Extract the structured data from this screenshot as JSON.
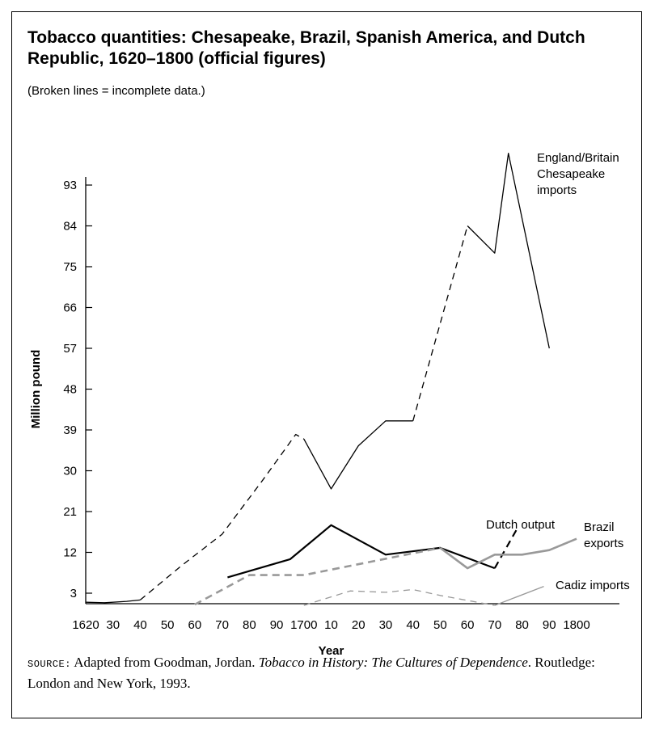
{
  "title": "Tobacco quantities: Chesapeake, Brazil, Spanish America, and Dutch Republic, 1620–1800 (official figures)",
  "subtitle": "(Broken lines = incomplete data.)",
  "source": {
    "label": "SOURCE:",
    "text_before": " Adapted from Goodman, Jordan. ",
    "book": "Tobacco in History: The Cultures of Dependence",
    "text_after": ". Routledge: London and New York, 1993."
  },
  "chart_data": {
    "type": "line",
    "xlabel": "Year",
    "ylabel": "Million pound",
    "xlim": [
      1620,
      1800
    ],
    "ylim": [
      0,
      102
    ],
    "y_ticks": [
      3,
      12,
      21,
      30,
      39,
      48,
      57,
      66,
      75,
      84,
      93
    ],
    "x_ticks": [
      {
        "value": 1620,
        "label": "1620"
      },
      {
        "value": 1630,
        "label": "30"
      },
      {
        "value": 1640,
        "label": "40"
      },
      {
        "value": 1650,
        "label": "50"
      },
      {
        "value": 1660,
        "label": "60"
      },
      {
        "value": 1670,
        "label": "70"
      },
      {
        "value": 1680,
        "label": "80"
      },
      {
        "value": 1690,
        "label": "90"
      },
      {
        "value": 1700,
        "label": "1700"
      },
      {
        "value": 1710,
        "label": "10"
      },
      {
        "value": 1720,
        "label": "20"
      },
      {
        "value": 1730,
        "label": "30"
      },
      {
        "value": 1740,
        "label": "40"
      },
      {
        "value": 1750,
        "label": "50"
      },
      {
        "value": 1760,
        "label": "60"
      },
      {
        "value": 1770,
        "label": "70"
      },
      {
        "value": 1780,
        "label": "80"
      },
      {
        "value": 1790,
        "label": "90"
      },
      {
        "value": 1800,
        "label": "1800"
      }
    ],
    "grid": false,
    "series": [
      {
        "name": "England/Britain Chesapeake imports",
        "label_lines": [
          "England/Britain",
          "Chesapeake",
          "imports"
        ],
        "color": "#000000",
        "stroke_width": 1.3,
        "segments": [
          {
            "dashed": false,
            "points": [
              [
                1620,
                1
              ],
              [
                1627,
                0.9
              ],
              [
                1635,
                1.2
              ],
              [
                1640,
                1.5
              ]
            ]
          },
          {
            "dashed": true,
            "points": [
              [
                1640,
                1.5
              ],
              [
                1655,
                9
              ],
              [
                1670,
                16
              ],
              [
                1685,
                28
              ],
              [
                1697,
                38
              ],
              [
                1700,
                37
              ]
            ]
          },
          {
            "dashed": false,
            "points": [
              [
                1700,
                37
              ],
              [
                1710,
                26
              ],
              [
                1720,
                35.5
              ],
              [
                1730,
                41
              ],
              [
                1740,
                41
              ]
            ]
          },
          {
            "dashed": true,
            "points": [
              [
                1740,
                41
              ],
              [
                1760,
                84
              ]
            ]
          },
          {
            "dashed": false,
            "points": [
              [
                1760,
                84
              ],
              [
                1770,
                78
              ],
              [
                1775,
                100
              ],
              [
                1790,
                57
              ]
            ]
          }
        ]
      },
      {
        "name": "Dutch output",
        "label_lines": [
          "Dutch output"
        ],
        "color": "#000000",
        "stroke_width": 2.2,
        "segments": [
          {
            "dashed": false,
            "points": [
              [
                1672,
                6.5
              ],
              [
                1695,
                10.5
              ],
              [
                1710,
                18
              ],
              [
                1730,
                11.5
              ],
              [
                1750,
                13
              ],
              [
                1770,
                8.5
              ]
            ]
          },
          {
            "dashed": true,
            "points": [
              [
                1770,
                8.5
              ],
              [
                1778,
                17
              ]
            ]
          }
        ]
      },
      {
        "name": "Brazil exports",
        "label_lines": [
          "Brazil",
          "exports"
        ],
        "color": "#999999",
        "stroke_width": 2.6,
        "segments": [
          {
            "dashed": true,
            "points": [
              [
                1660,
                0.5
              ],
              [
                1680,
                7
              ],
              [
                1700,
                7
              ],
              [
                1750,
                13
              ]
            ]
          },
          {
            "dashed": false,
            "points": [
              [
                1750,
                13
              ],
              [
                1760,
                8.5
              ],
              [
                1770,
                11.5
              ],
              [
                1780,
                11.5
              ],
              [
                1790,
                12.5
              ],
              [
                1800,
                15
              ]
            ]
          }
        ]
      },
      {
        "name": "Cadiz imports",
        "label_lines": [
          "Cadiz imports"
        ],
        "color": "#999999",
        "stroke_width": 1.3,
        "segments": [
          {
            "dashed": true,
            "points": [
              [
                1700,
                0.3
              ],
              [
                1717,
                3.5
              ],
              [
                1730,
                3.2
              ],
              [
                1740,
                3.8
              ],
              [
                1750,
                2.5
              ],
              [
                1770,
                0.3
              ]
            ]
          },
          {
            "dashed": false,
            "points": [
              [
                1770,
                0.3
              ],
              [
                1788,
                4.5
              ]
            ]
          }
        ]
      }
    ]
  }
}
